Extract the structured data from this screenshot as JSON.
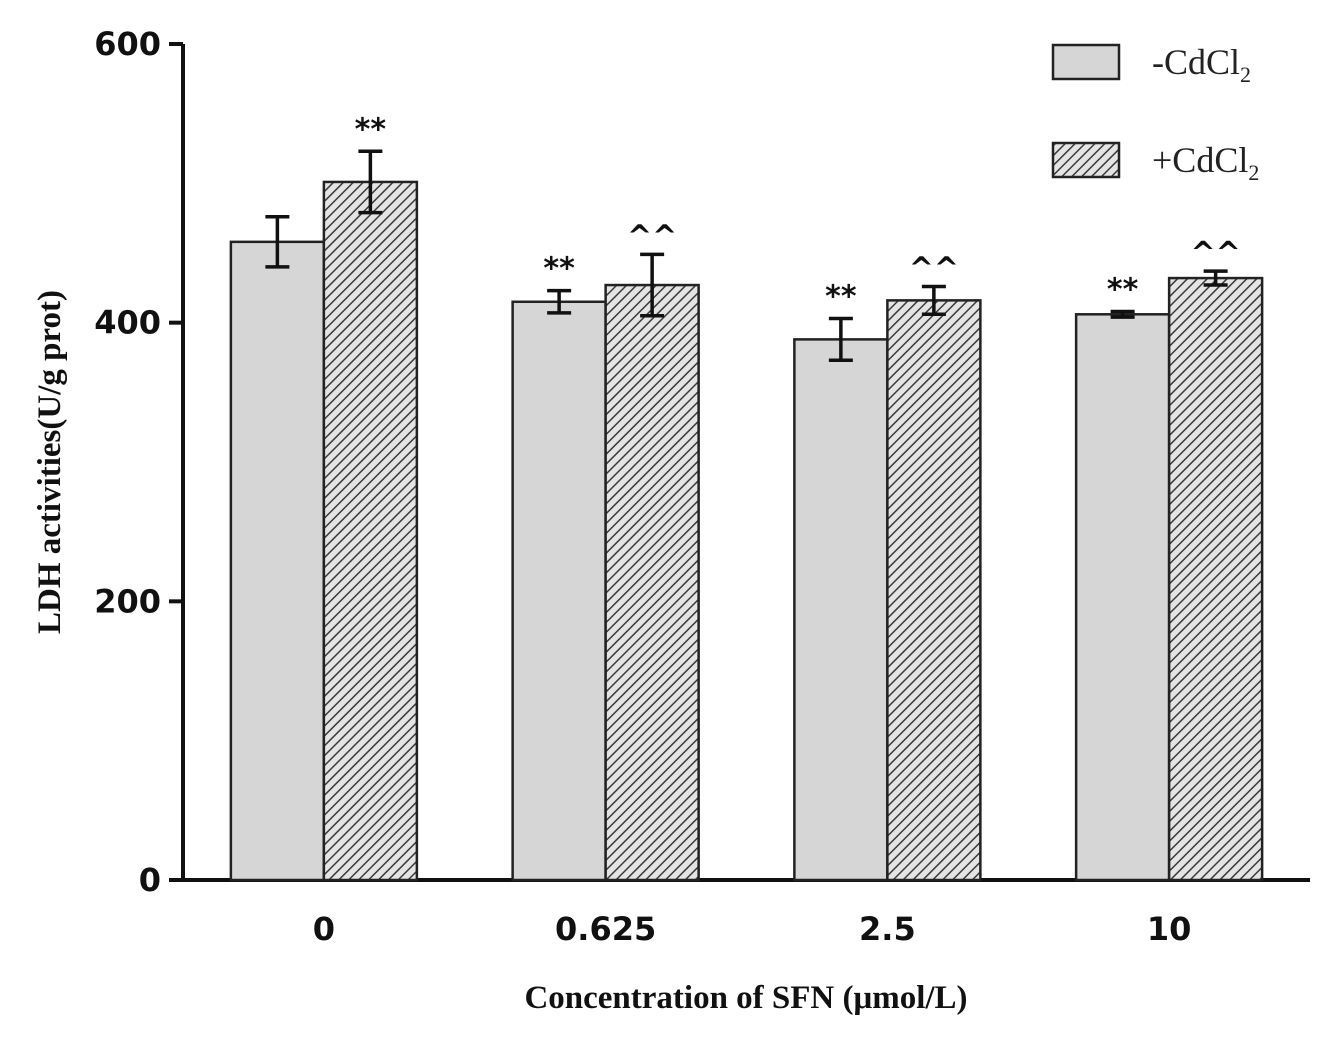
{
  "chart_data": {
    "type": "bar",
    "title": "",
    "xlabel": "Concentration of SFN (μmol/L)",
    "ylabel": "LDH activities(U/g prot)",
    "ylim": [
      0,
      600
    ],
    "yticks": [
      "0",
      "200",
      "400",
      "600"
    ],
    "categories": [
      "0",
      "0.625",
      "2.5",
      "10"
    ],
    "legend_position": "top-right",
    "series": [
      {
        "name": "-CdCl",
        "subscript": "2",
        "fill": "#d6d6d6",
        "pattern": "solid",
        "values": [
          458,
          415,
          388,
          406
        ],
        "errors": [
          18,
          8,
          15,
          2
        ],
        "annotations": [
          "",
          "**",
          "**",
          "**"
        ]
      },
      {
        "name": "+CdCl",
        "subscript": "2",
        "fill": "#d6d6d6",
        "pattern": "hatched",
        "values": [
          501,
          427,
          416,
          432
        ],
        "errors": [
          22,
          22,
          10,
          5
        ],
        "annotations": [
          "**",
          "^^",
          "^^",
          "^^"
        ]
      }
    ]
  }
}
